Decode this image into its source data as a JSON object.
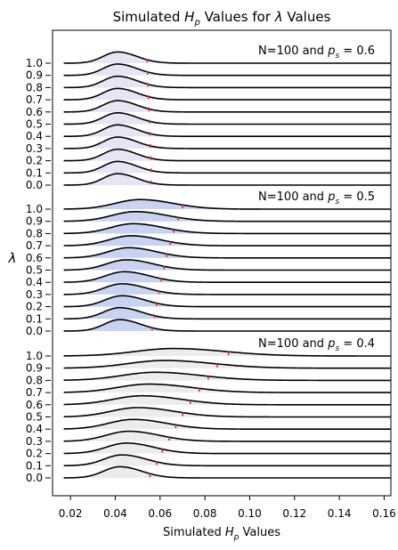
{
  "chart_data": {
    "type": "ridgeline",
    "title": "Simulated H_p Values for λ Values",
    "title_parts": {
      "prefix": "Simulated ",
      "var": "H",
      "sub": "p",
      "mid": " Values for ",
      "lambda": "λ",
      "suffix": " Values"
    },
    "xlabel": "Simulated H_p Values",
    "xlabel_parts": {
      "prefix": "Simulated ",
      "var": "H",
      "sub": "p",
      "suffix": " Values"
    },
    "ylabel": "λ",
    "xlim": [
      0.012,
      0.163
    ],
    "xticks": [
      0.02,
      0.04,
      0.06,
      0.08,
      0.1,
      0.12,
      0.14,
      0.16
    ],
    "xtick_labels": [
      "0.02",
      "0.04",
      "0.06",
      "0.08",
      "0.10",
      "0.12",
      "0.14",
      "0.16"
    ],
    "lambda_labels": [
      "0.0",
      "0.1",
      "0.2",
      "0.3",
      "0.4",
      "0.5",
      "0.6",
      "0.7",
      "0.8",
      "0.9",
      "1.0"
    ],
    "panels": [
      {
        "label": "N=100 and p_s = 0.6",
        "label_parts": {
          "prefix": "N=100 and ",
          "var": "p",
          "sub": "s",
          "suffix": " = 0.6"
        },
        "fill_color": "#e8e4f6",
        "curve_start": 0.017,
        "rows": [
          {
            "lambda": "0.0",
            "peak": 0.041,
            "width": 0.0063,
            "height": 0.92,
            "marker": 0.056
          },
          {
            "lambda": "0.1",
            "peak": 0.041,
            "width": 0.0063,
            "height": 0.92,
            "marker": 0.056
          },
          {
            "lambda": "0.2",
            "peak": 0.041,
            "width": 0.0063,
            "height": 0.92,
            "marker": 0.0558
          },
          {
            "lambda": "0.3",
            "peak": 0.041,
            "width": 0.0063,
            "height": 0.92,
            "marker": 0.0556
          },
          {
            "lambda": "0.4",
            "peak": 0.041,
            "width": 0.0063,
            "height": 0.92,
            "marker": 0.0554
          },
          {
            "lambda": "0.5",
            "peak": 0.041,
            "width": 0.0064,
            "height": 0.91,
            "marker": 0.0552
          },
          {
            "lambda": "0.6",
            "peak": 0.041,
            "width": 0.0064,
            "height": 0.91,
            "marker": 0.055
          },
          {
            "lambda": "0.7",
            "peak": 0.041,
            "width": 0.0064,
            "height": 0.91,
            "marker": 0.0548
          },
          {
            "lambda": "0.8",
            "peak": 0.041,
            "width": 0.0064,
            "height": 0.91,
            "marker": 0.0546
          },
          {
            "lambda": "0.9",
            "peak": 0.041,
            "width": 0.0064,
            "height": 0.91,
            "marker": 0.0544
          },
          {
            "lambda": "1.0",
            "peak": 0.041,
            "width": 0.0064,
            "height": 0.9,
            "marker": 0.0542
          }
        ]
      },
      {
        "label": "N=100 and p_s = 0.5",
        "label_parts": {
          "prefix": "N=100 and ",
          "var": "p",
          "sub": "s",
          "suffix": " = 0.5"
        },
        "fill_color": "#c8d3f2",
        "curve_start": 0.017,
        "rows": [
          {
            "lambda": "0.0",
            "peak": 0.042,
            "width": 0.0068,
            "height": 0.92,
            "marker": 0.0565
          },
          {
            "lambda": "0.1",
            "peak": 0.042,
            "width": 0.0072,
            "height": 0.9,
            "marker": 0.0575
          },
          {
            "lambda": "0.2",
            "peak": 0.043,
            "width": 0.0076,
            "height": 0.88,
            "marker": 0.0585
          },
          {
            "lambda": "0.3",
            "peak": 0.043,
            "width": 0.008,
            "height": 0.86,
            "marker": 0.0595
          },
          {
            "lambda": "0.4",
            "peak": 0.044,
            "width": 0.0084,
            "height": 0.85,
            "marker": 0.0605
          },
          {
            "lambda": "0.5",
            "peak": 0.045,
            "width": 0.0088,
            "height": 0.83,
            "marker": 0.0618
          },
          {
            "lambda": "0.6",
            "peak": 0.046,
            "width": 0.0092,
            "height": 0.82,
            "marker": 0.063
          },
          {
            "lambda": "0.7",
            "peak": 0.047,
            "width": 0.0096,
            "height": 0.8,
            "marker": 0.0645
          },
          {
            "lambda": "0.8",
            "peak": 0.048,
            "width": 0.01,
            "height": 0.79,
            "marker": 0.066
          },
          {
            "lambda": "0.9",
            "peak": 0.049,
            "width": 0.0105,
            "height": 0.78,
            "marker": 0.068
          },
          {
            "lambda": "1.0",
            "peak": 0.051,
            "width": 0.011,
            "height": 0.77,
            "marker": 0.07
          }
        ]
      },
      {
        "label": "N=100 and p_s = 0.4",
        "label_parts": {
          "prefix": "N=100 and ",
          "var": "p",
          "sub": "s",
          "suffix": " = 0.4"
        },
        "fill_color": "#ececec",
        "curve_start": 0.017,
        "rows": [
          {
            "lambda": "0.0",
            "peak": 0.042,
            "width": 0.0072,
            "height": 0.9,
            "marker": 0.0555
          },
          {
            "lambda": "0.1",
            "peak": 0.043,
            "width": 0.008,
            "height": 0.87,
            "marker": 0.0585
          },
          {
            "lambda": "0.2",
            "peak": 0.045,
            "width": 0.009,
            "height": 0.84,
            "marker": 0.061
          },
          {
            "lambda": "0.3",
            "peak": 0.046,
            "width": 0.01,
            "height": 0.81,
            "marker": 0.064
          },
          {
            "lambda": "0.4",
            "peak": 0.048,
            "width": 0.011,
            "height": 0.78,
            "marker": 0.067
          },
          {
            "lambda": "0.5",
            "peak": 0.05,
            "width": 0.012,
            "height": 0.75,
            "marker": 0.07
          },
          {
            "lambda": "0.6",
            "peak": 0.052,
            "width": 0.013,
            "height": 0.72,
            "marker": 0.0735
          },
          {
            "lambda": "0.7",
            "peak": 0.055,
            "width": 0.014,
            "height": 0.68,
            "marker": 0.0775
          },
          {
            "lambda": "0.8",
            "peak": 0.058,
            "width": 0.015,
            "height": 0.65,
            "marker": 0.0815
          },
          {
            "lambda": "0.9",
            "peak": 0.062,
            "width": 0.016,
            "height": 0.62,
            "marker": 0.0855
          },
          {
            "lambda": "1.0",
            "peak": 0.066,
            "width": 0.017,
            "height": 0.6,
            "marker": 0.0905
          }
        ]
      }
    ],
    "colors": {
      "curve": "#000000",
      "marker": "#d62728",
      "axis": "#000000"
    },
    "grid": false
  }
}
